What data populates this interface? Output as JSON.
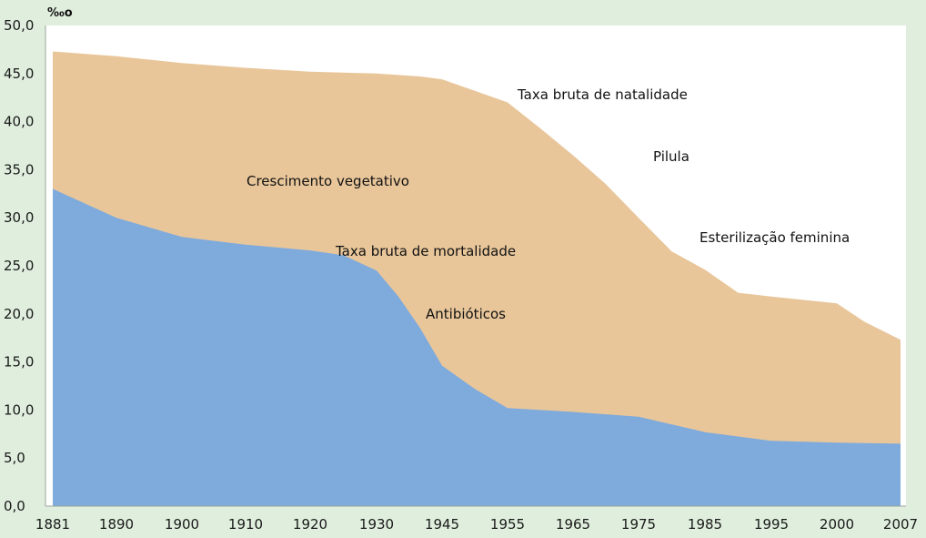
{
  "chart_data": {
    "type": "area",
    "title": "",
    "xlabel": "",
    "ylabel": "‰",
    "ylim": [
      0,
      50
    ],
    "yticks": [
      "0,0",
      "5,0",
      "10,0",
      "15,0",
      "20,0",
      "25,0",
      "30,0",
      "35,0",
      "40,0",
      "45,0",
      "50,0"
    ],
    "categories": [
      "1881",
      "1890",
      "1900",
      "1910",
      "1920",
      "1930",
      "1945",
      "1955",
      "1965",
      "1975",
      "1985",
      "1995",
      "2000",
      "2007"
    ],
    "series": [
      {
        "name": "Taxa bruta de natalidade",
        "color": "#e8c69a",
        "points": [
          [
            "1881",
            47.3
          ],
          [
            "1890",
            46.8
          ],
          [
            "1900",
            46.1
          ],
          [
            "1910",
            45.6
          ],
          [
            "1920",
            45.2
          ],
          [
            "1930",
            45.0
          ],
          [
            "1940",
            44.7
          ],
          [
            "1945",
            44.4
          ],
          [
            "1950",
            43.2
          ],
          [
            "1955",
            42.0
          ],
          [
            "1960",
            39.3
          ],
          [
            "1965",
            36.5
          ],
          [
            "1970",
            33.5
          ],
          [
            "1975",
            30.0
          ],
          [
            "1980",
            26.5
          ],
          [
            "1985",
            24.6
          ],
          [
            "1990",
            22.2
          ],
          [
            "1995",
            21.8
          ],
          [
            "2000",
            21.1
          ],
          [
            "2003",
            19.2
          ],
          [
            "2007",
            17.3
          ]
        ]
      },
      {
        "name": "Taxa bruta de mortalidade",
        "color": "#7eaadc",
        "points": [
          [
            "1881",
            33.0
          ],
          [
            "1890",
            30.0
          ],
          [
            "1900",
            28.0
          ],
          [
            "1910",
            27.2
          ],
          [
            "1920",
            26.6
          ],
          [
            "1925",
            26.1
          ],
          [
            "1930",
            24.5
          ],
          [
            "1935",
            21.8
          ],
          [
            "1940",
            18.5
          ],
          [
            "1945",
            14.6
          ],
          [
            "1950",
            12.2
          ],
          [
            "1955",
            10.2
          ],
          [
            "1965",
            9.8
          ],
          [
            "1975",
            9.3
          ],
          [
            "1980",
            8.5
          ],
          [
            "1985",
            7.7
          ],
          [
            "1995",
            6.8
          ],
          [
            "2000",
            6.6
          ],
          [
            "2007",
            6.5
          ]
        ]
      }
    ],
    "annotations": [
      "Taxa bruta de natalidade",
      "Pilula",
      "Crescimento vegetativo",
      "Taxa bruta de mortalidade",
      "Esterilização feminina",
      "Antibióticos"
    ],
    "unit_symbol": "‰o",
    "grid": false,
    "legend": "none",
    "colors": {
      "background": "#dfeedd",
      "plot_background": "#ffffff",
      "births_fill": "#e8c69a",
      "deaths_fill": "#7eaadc",
      "axis": "#9aa59a"
    }
  }
}
